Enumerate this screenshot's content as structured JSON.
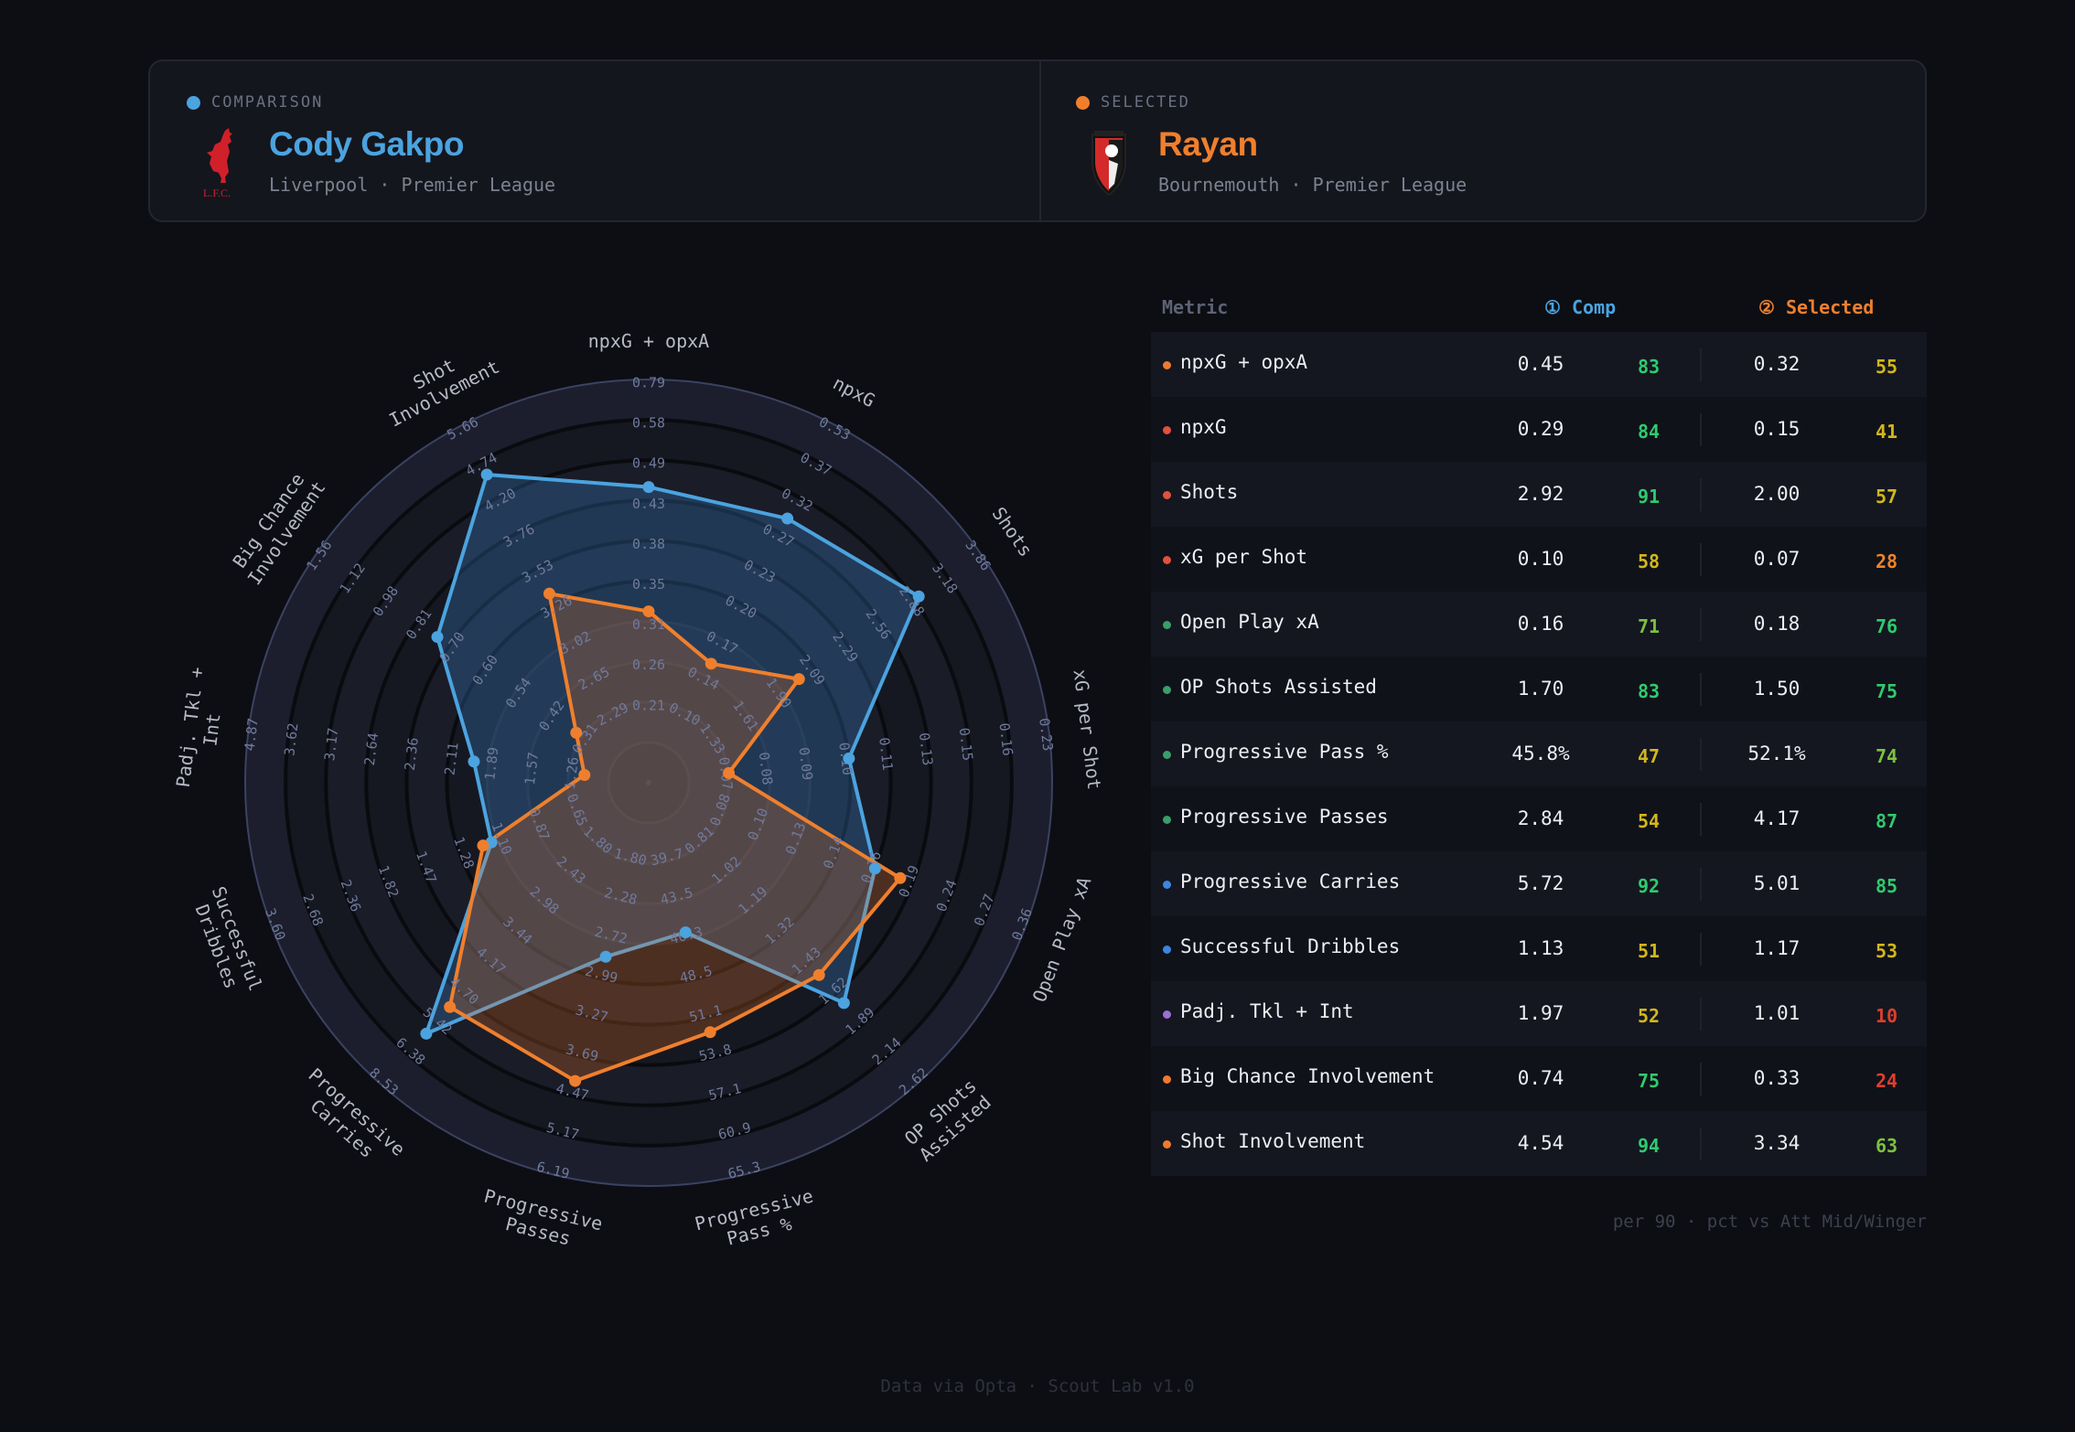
{
  "header": {
    "comparison": {
      "tag": "COMPARISON",
      "name": "Cody Gakpo",
      "subtitle": "Liverpool · Premier League",
      "logo_text": "L.F.C.",
      "color": "#4ba3df"
    },
    "selected": {
      "tag": "SELECTED",
      "name": "Rayan",
      "subtitle": "Bournemouth · Premier League",
      "color": "#ef7f2d"
    }
  },
  "table": {
    "headers": {
      "metric": "Metric",
      "comp": "① Comp",
      "selected": "② Selected"
    },
    "rows": [
      {
        "metric": "npxG + opxA",
        "dot": "#ef7a2f",
        "comp_value": "0.45",
        "comp_pct": 83,
        "sel_value": "0.32",
        "sel_pct": 55
      },
      {
        "metric": "npxG",
        "dot": "#e2503e",
        "comp_value": "0.29",
        "comp_pct": 84,
        "sel_value": "0.15",
        "sel_pct": 41
      },
      {
        "metric": "Shots",
        "dot": "#e2503e",
        "comp_value": "2.92",
        "comp_pct": 91,
        "sel_value": "2.00",
        "sel_pct": 57
      },
      {
        "metric": "xG per Shot",
        "dot": "#e2503e",
        "comp_value": "0.10",
        "comp_pct": 58,
        "sel_value": "0.07",
        "sel_pct": 28
      },
      {
        "metric": "Open Play xA",
        "dot": "#3a9e6a",
        "comp_value": "0.16",
        "comp_pct": 71,
        "sel_value": "0.18",
        "sel_pct": 76
      },
      {
        "metric": "OP Shots Assisted",
        "dot": "#3a9e6a",
        "comp_value": "1.70",
        "comp_pct": 83,
        "sel_value": "1.50",
        "sel_pct": 75
      },
      {
        "metric": "Progressive Pass %",
        "dot": "#3a9e6a",
        "comp_value": "45.8%",
        "comp_pct": 47,
        "sel_value": "52.1%",
        "sel_pct": 74
      },
      {
        "metric": "Progressive Passes",
        "dot": "#3a9e6a",
        "comp_value": "2.84",
        "comp_pct": 54,
        "sel_value": "4.17",
        "sel_pct": 87
      },
      {
        "metric": "Progressive Carries",
        "dot": "#3b86e0",
        "comp_value": "5.72",
        "comp_pct": 92,
        "sel_value": "5.01",
        "sel_pct": 85
      },
      {
        "metric": "Successful Dribbles",
        "dot": "#3b86e0",
        "comp_value": "1.13",
        "comp_pct": 51,
        "sel_value": "1.17",
        "sel_pct": 53
      },
      {
        "metric": "Padj. Tkl + Int",
        "dot": "#9a6fd6",
        "comp_value": "1.97",
        "comp_pct": 52,
        "sel_value": "1.01",
        "sel_pct": 10
      },
      {
        "metric": "Big Chance Involvement",
        "dot": "#ef7a2f",
        "comp_value": "0.74",
        "comp_pct": 75,
        "sel_value": "0.33",
        "sel_pct": 24
      },
      {
        "metric": "Shot Involvement",
        "dot": "#ef7a2f",
        "comp_value": "4.54",
        "comp_pct": 94,
        "sel_value": "3.34",
        "sel_pct": 63
      }
    ],
    "pct_colors": {
      "elite": "#2fcb6e",
      "good": "#7cc23f",
      "mid": "#d2b71c",
      "low": "#ef8428",
      "poor": "#de3f2c"
    },
    "note": "per 90 · pct vs Att Mid/Winger"
  },
  "radar": {
    "comp_color": "#4ba3df",
    "sel_color": "#ef7f2d",
    "tick_percentiles": [
      20,
      30,
      40,
      50,
      60,
      70,
      80,
      90,
      100
    ],
    "axes": [
      {
        "label": [
          "npxG + opxA"
        ],
        "ticks": [
          "0.21",
          "0.26",
          "0.31",
          "0.35",
          "0.38",
          "0.43",
          "0.49",
          "0.58",
          "0.79"
        ]
      },
      {
        "label": [
          "npxG"
        ],
        "ticks": [
          "0.10",
          "0.14",
          "0.17",
          "0.20",
          "0.23",
          "0.27",
          "0.32",
          "0.37",
          "0.53"
        ]
      },
      {
        "label": [
          "Shots"
        ],
        "ticks": [
          "1.33",
          "1.61",
          "1.90",
          "2.09",
          "2.29",
          "2.56",
          "2.88",
          "3.18",
          "3.86"
        ]
      },
      {
        "label": [
          "xG per Shot"
        ],
        "ticks": [
          "0.07",
          "0.08",
          "0.09",
          "0.10",
          "0.11",
          "0.13",
          "0.15",
          "0.16",
          "0.23"
        ]
      },
      {
        "label": [
          "Open Play xA"
        ],
        "ticks": [
          "0.08",
          "0.10",
          "0.13",
          "0.14",
          "0.16",
          "0.19",
          "0.24",
          "0.27",
          "0.36"
        ]
      },
      {
        "label": [
          "OP Shots",
          "Assisted"
        ],
        "ticks": [
          "0.81",
          "1.02",
          "1.19",
          "1.32",
          "1.43",
          "1.62",
          "1.89",
          "2.14",
          "2.62"
        ]
      },
      {
        "label": [
          "Progressive",
          "Pass %"
        ],
        "ticks": [
          "39.7",
          "43.5",
          "46.3",
          "48.5",
          "51.1",
          "53.8",
          "57.1",
          "60.9",
          "65.3"
        ]
      },
      {
        "label": [
          "Progressive",
          "Passes"
        ],
        "ticks": [
          "1.80",
          "2.28",
          "2.72",
          "2.99",
          "3.27",
          "3.69",
          "4.47",
          "5.17",
          "6.19"
        ]
      },
      {
        "label": [
          "Progressive",
          "Carries"
        ],
        "ticks": [
          "1.80",
          "2.43",
          "2.98",
          "3.44",
          "4.17",
          "4.70",
          "5.42",
          "6.38",
          "8.53"
        ]
      },
      {
        "label": [
          "Successful",
          "Dribbles"
        ],
        "ticks": [
          "0.65",
          "0.87",
          "1.10",
          "1.28",
          "1.47",
          "1.82",
          "2.36",
          "2.68",
          "3.60"
        ]
      },
      {
        "label": [
          "Padj. Tkl +",
          "Int"
        ],
        "ticks": [
          "1.26",
          "1.57",
          "1.89",
          "2.11",
          "2.36",
          "2.64",
          "3.17",
          "3.62",
          "4.87"
        ]
      },
      {
        "label": [
          "Big Chance",
          "Involvement"
        ],
        "ticks": [
          "0.31",
          "0.42",
          "0.54",
          "0.60",
          "0.70",
          "0.81",
          "0.98",
          "1.12",
          "1.56"
        ]
      },
      {
        "label": [
          "Shot",
          "Involvement"
        ],
        "ticks": [
          "2.29",
          "2.65",
          "3.02",
          "3.26",
          "3.53",
          "3.76",
          "4.20",
          "4.74",
          "5.66"
        ]
      }
    ]
  },
  "footer": "Data via Opta · Scout Lab v1.0"
}
